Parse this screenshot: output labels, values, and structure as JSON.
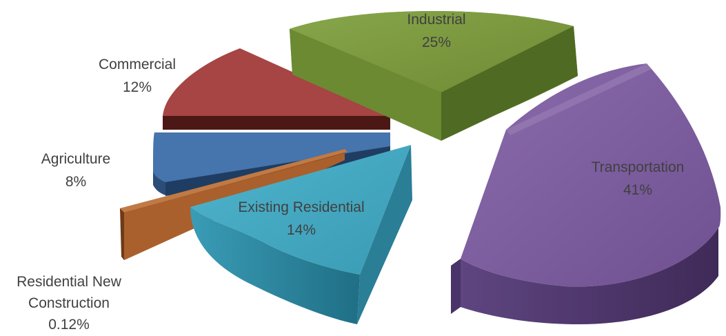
{
  "chart_data": {
    "type": "pie",
    "style": "3D exploded pie",
    "legend": "none",
    "slices": [
      {
        "name": "Industrial",
        "value": 25,
        "value_label": "25%",
        "color": "#77933c"
      },
      {
        "name": "Transportation",
        "value": 41,
        "value_label": "41%",
        "color": "#7e5e9e"
      },
      {
        "name": "Existing Residential",
        "value": 14,
        "value_label": "14%",
        "color": "#3fa6c0"
      },
      {
        "name": "Residential New Construction",
        "value": 0.12,
        "value_label": "0.12%",
        "color": "#a9602d"
      },
      {
        "name": "Agriculture",
        "value": 8,
        "value_label": "8%",
        "color": "#4674ad"
      },
      {
        "name": "Commercial",
        "value": 12,
        "value_label": "12%",
        "color": "#a64543"
      }
    ]
  },
  "labels": {
    "industrial": {
      "name": "Industrial",
      "pct": "25%"
    },
    "transportation": {
      "name": "Transportation",
      "pct": "41%"
    },
    "existing_residential": {
      "name": "Existing Residential",
      "pct": "14%"
    },
    "residential_new": {
      "line1": "Residential New",
      "line2": "Construction",
      "pct": "0.12%"
    },
    "agriculture": {
      "name": "Agriculture",
      "pct": "8%"
    },
    "commercial": {
      "name": "Commercial",
      "pct": "12%"
    }
  }
}
